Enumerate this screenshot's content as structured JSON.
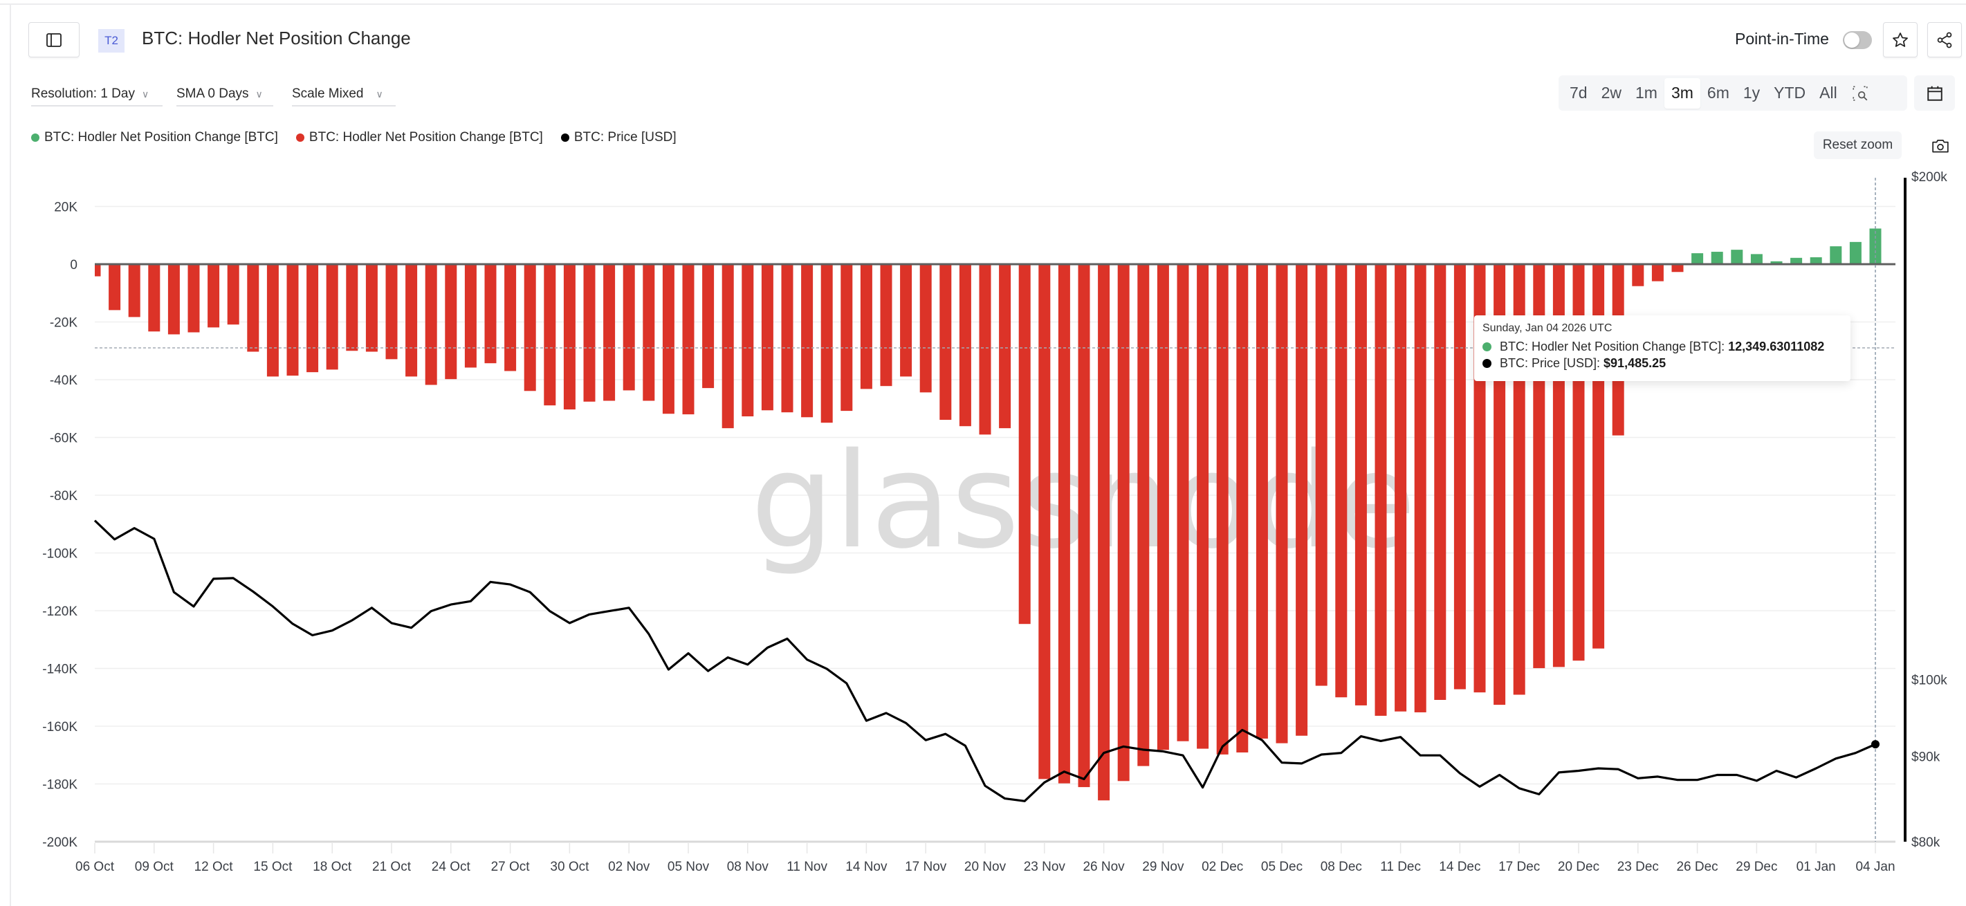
{
  "header": {
    "badge": "T2",
    "title": "BTC: Hodler Net Position Change",
    "point_in_time_label": "Point-in-Time",
    "point_in_time_enabled": false,
    "icons": {
      "sidebar": "sidebar-toggle-icon",
      "favorite": "star-icon",
      "share": "share-icon"
    }
  },
  "controls": {
    "resolution": "Resolution: 1 Day",
    "sma": "SMA 0 Days",
    "scale": "Scale Mixed",
    "ranges": [
      "7d",
      "2w",
      "1m",
      "3m",
      "6m",
      "1y",
      "YTD",
      "All"
    ],
    "active_range": "3m",
    "reset_zoom": "Reset zoom"
  },
  "legend": [
    {
      "label": "BTC: Hodler Net Position Change [BTC]",
      "color": "#4caf6e"
    },
    {
      "label": "BTC: Hodler Net Position Change [BTC]",
      "color": "#dc3328"
    },
    {
      "label": "BTC: Price [USD]",
      "color": "#000000"
    }
  ],
  "tooltip": {
    "date": "Sunday, Jan 04 2026 UTC",
    "rows": [
      {
        "label": "BTC: Hodler Net Position Change [BTC]: ",
        "value": "12,349.63011082",
        "color": "#4caf6e"
      },
      {
        "label": "BTC: Price [USD]: ",
        "value": "$91,485.25",
        "color": "#000000"
      }
    ]
  },
  "watermark": "glassnode",
  "colors": {
    "positive": "#4caf6e",
    "negative": "#dc3328",
    "price": "#000000",
    "grid": "#efefef",
    "zero": "#5f5f5f"
  },
  "chart_data": {
    "type": "bar",
    "title": "BTC: Hodler Net Position Change",
    "xlabel": "",
    "ylabel": "Hodler Net Position Change [BTC]",
    "y2label": "Price [USD]",
    "ylim": [
      -200000,
      20000
    ],
    "y_ticks": [
      "20K",
      "0",
      "-20K",
      "-40K",
      "-60K",
      "-80K",
      "-100K",
      "-120K",
      "-140K",
      "-160K",
      "-180K",
      "-200K"
    ],
    "y_tick_values": [
      20000,
      0,
      -20000,
      -40000,
      -60000,
      -80000,
      -100000,
      -120000,
      -140000,
      -160000,
      -180000,
      -200000
    ],
    "y2_scale": "log",
    "y2_ticks": [
      "$200k",
      "$100k",
      "$90k",
      "$80k"
    ],
    "y2_tick_values": [
      200000,
      100000,
      90000,
      80000
    ],
    "grid": true,
    "legend_position": "top-left",
    "x_ticks": [
      "06 Oct",
      "09 Oct",
      "12 Oct",
      "15 Oct",
      "18 Oct",
      "21 Oct",
      "24 Oct",
      "27 Oct",
      "30 Oct",
      "02 Nov",
      "05 Nov",
      "08 Nov",
      "11 Nov",
      "14 Nov",
      "17 Nov",
      "20 Nov",
      "23 Nov",
      "26 Nov",
      "29 Nov",
      "02 Dec",
      "05 Dec",
      "08 Dec",
      "11 Dec",
      "14 Dec",
      "17 Dec",
      "20 Dec",
      "23 Dec",
      "26 Dec",
      "29 Dec",
      "01 Jan",
      "04 Jan"
    ],
    "x_start": "2025-10-06",
    "x_end": "2026-01-04",
    "highlight_index": 90,
    "series": [
      {
        "name": "BTC: Hodler Net Position Change [BTC]",
        "type": "bar",
        "axis": "left",
        "values": [
          -4200,
          -15900,
          -18300,
          -23300,
          -24300,
          -23600,
          -21900,
          -20900,
          -30300,
          -38900,
          -38600,
          -37400,
          -36500,
          -30000,
          -30300,
          -32900,
          -38900,
          -41800,
          -39800,
          -35800,
          -34300,
          -37000,
          -43900,
          -48900,
          -50300,
          -47600,
          -47300,
          -43700,
          -47300,
          -51800,
          -52000,
          -42900,
          -56800,
          -52700,
          -50600,
          -51300,
          -53000,
          -54900,
          -50800,
          -43200,
          -42200,
          -38900,
          -44400,
          -53900,
          -56100,
          -59000,
          -56800,
          -124600,
          -178300,
          -179800,
          -181100,
          -185700,
          -179000,
          -173800,
          -168200,
          -165200,
          -167800,
          -169800,
          -169100,
          -164300,
          -165900,
          -163300,
          -146000,
          -150000,
          -152800,
          -156400,
          -154900,
          -155200,
          -150900,
          -147200,
          -148300,
          -152600,
          -149100,
          -139900,
          -139500,
          -137300,
          -133100,
          -59300,
          -7600,
          -5900,
          -2700,
          3800,
          4300,
          5000,
          3500,
          1000,
          2200,
          2400,
          6200,
          7700,
          12349.63
        ]
      },
      {
        "name": "BTC: Price [USD]",
        "type": "line",
        "axis": "right",
        "values": [
          124500,
          121300,
          123200,
          121400,
          112800,
          110600,
          114900,
          115000,
          112900,
          110600,
          108000,
          106300,
          107000,
          108500,
          110400,
          108100,
          107400,
          109900,
          110900,
          111400,
          114400,
          114000,
          112800,
          109900,
          108100,
          109400,
          109900,
          110400,
          106500,
          101400,
          103700,
          101200,
          103100,
          102100,
          104500,
          105800,
          102800,
          101500,
          99500,
          94500,
          95500,
          94200,
          92000,
          92800,
          91300,
          86400,
          84900,
          84600,
          86800,
          88100,
          87200,
          90400,
          91200,
          90800,
          90600,
          90100,
          86200,
          91200,
          93300,
          92000,
          89200,
          89100,
          90200,
          90400,
          92500,
          91900,
          92400,
          90100,
          90100,
          87900,
          86300,
          87700,
          86100,
          85400,
          88000,
          88200,
          88500,
          88400,
          87300,
          87500,
          87100,
          87100,
          87700,
          87700,
          87000,
          88200,
          87400,
          88500,
          89700,
          90400,
          91485.25
        ]
      }
    ]
  }
}
